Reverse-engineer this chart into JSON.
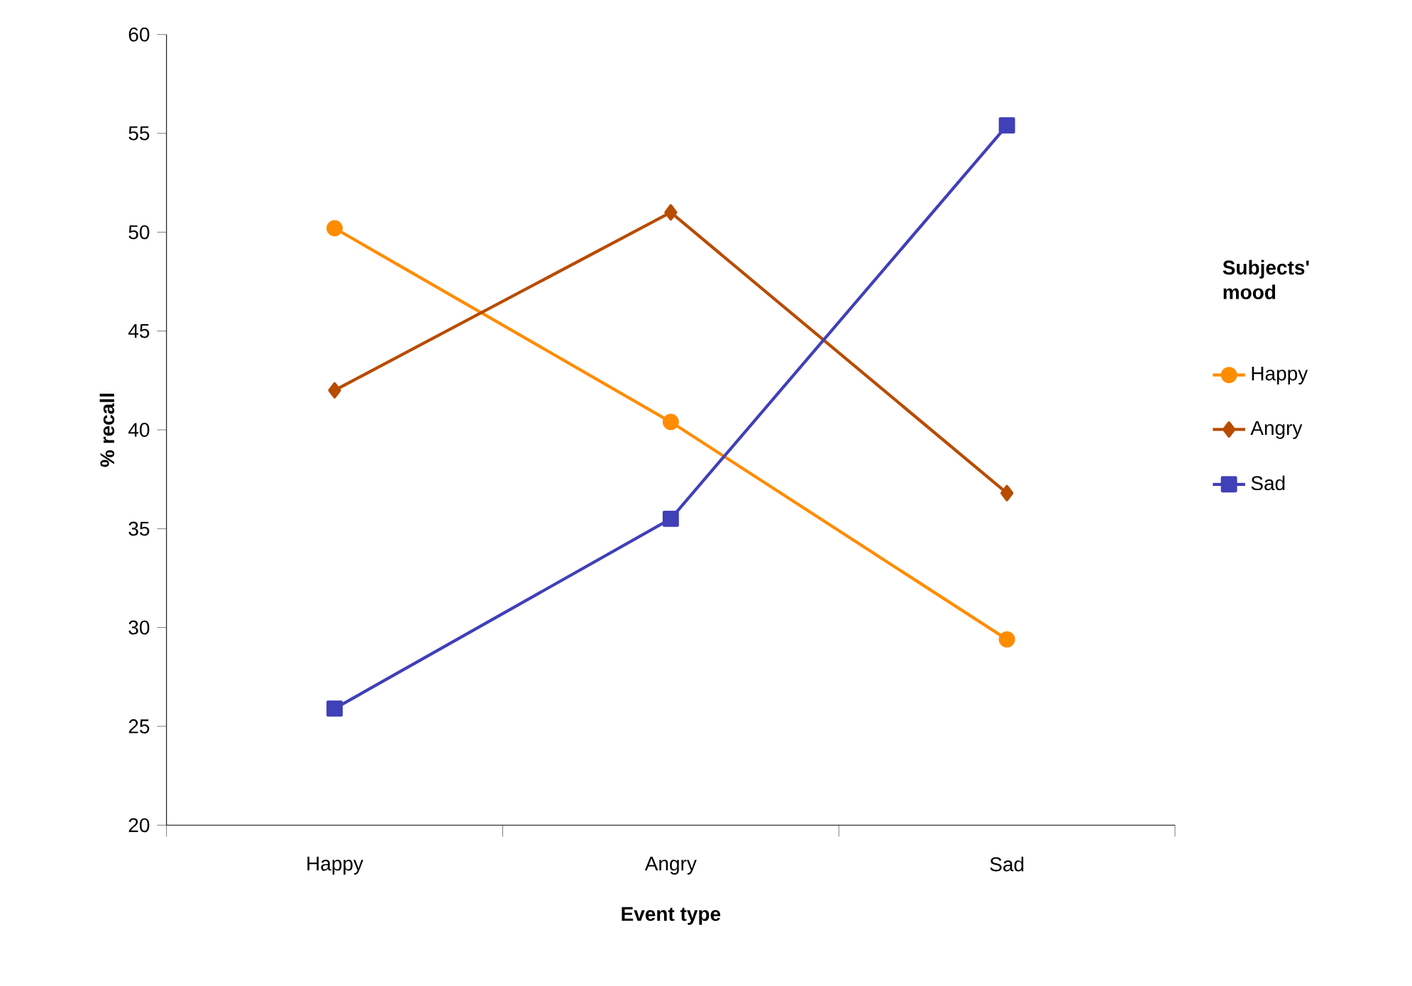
{
  "chart_data": {
    "type": "line",
    "xlabel": "Event type",
    "ylabel": "% recall",
    "legend_title": "Subjects' mood",
    "categories": [
      "Happy",
      "Angry",
      "Sad"
    ],
    "series": [
      {
        "name": "Happy",
        "color": "#ff8c00",
        "marker": "circle",
        "values": [
          50.2,
          40.4,
          29.4
        ]
      },
      {
        "name": "Angry",
        "color": "#b84c00",
        "marker": "diamond",
        "values": [
          42.0,
          51.0,
          36.8
        ]
      },
      {
        "name": "Sad",
        "color": "#4040b8",
        "marker": "square",
        "values": [
          25.9,
          35.5,
          55.4
        ]
      }
    ],
    "ylim": [
      20,
      60
    ],
    "yticks": [
      20,
      25,
      30,
      35,
      40,
      45,
      50,
      55,
      60
    ],
    "grid": false,
    "legend": "right",
    "line_style": "solid"
  }
}
